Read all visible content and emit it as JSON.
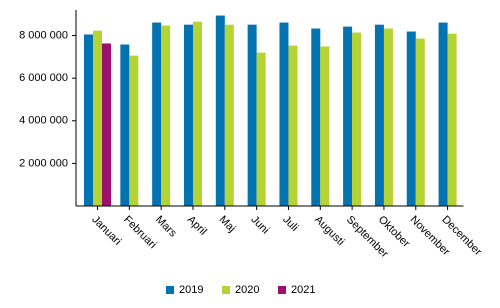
{
  "chart_data": {
    "type": "bar",
    "categories": [
      "Januari",
      "Februari",
      "Mars",
      "April",
      "Maj",
      "Juni",
      "Juli",
      "Augusti",
      "September",
      "Oktober",
      "November",
      "December"
    ],
    "series": [
      {
        "name": "2019",
        "color": "#0073b0",
        "values": [
          8050000,
          7580000,
          8610000,
          8510000,
          8940000,
          8510000,
          8610000,
          8330000,
          8420000,
          8510000,
          8190000,
          8610000
        ]
      },
      {
        "name": "2020",
        "color": "#b5d334",
        "values": [
          8230000,
          7060000,
          8470000,
          8650000,
          8510000,
          7200000,
          7530000,
          7490000,
          8140000,
          8330000,
          7860000,
          8090000
        ]
      },
      {
        "name": "2021",
        "color": "#9c0f6f",
        "values": [
          7630000,
          null,
          null,
          null,
          null,
          null,
          null,
          null,
          null,
          null,
          null,
          null
        ]
      }
    ],
    "ylim": [
      0,
      9200000
    ],
    "yticks": [
      {
        "value": 2000000,
        "label": "2 000 000"
      },
      {
        "value": 4000000,
        "label": "4 000 000"
      },
      {
        "value": 6000000,
        "label": "6 000 000"
      },
      {
        "value": 8000000,
        "label": "8 000 000"
      }
    ],
    "grid": false,
    "legend": "bottom"
  }
}
